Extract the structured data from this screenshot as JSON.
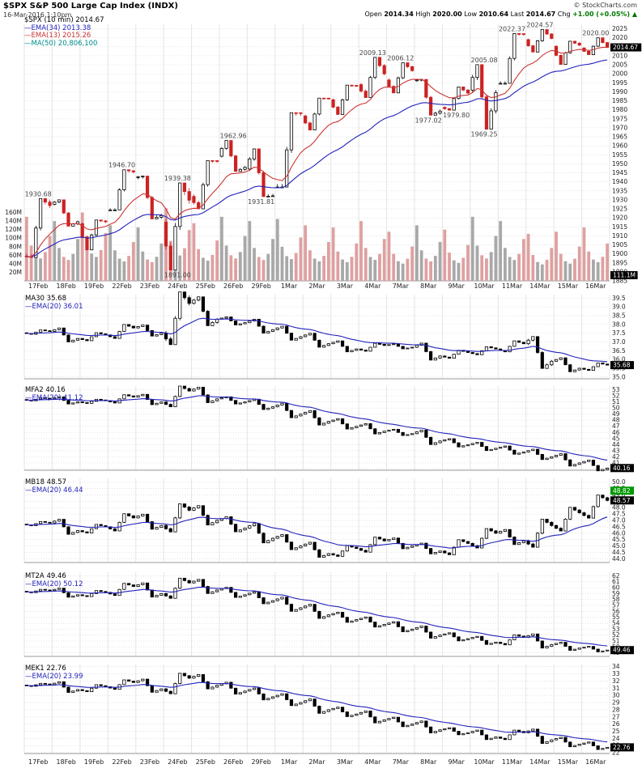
{
  "header": {
    "title": "$SPX S&P 500 Large Cap Index (INDX)",
    "copyright": "© StockCharts.com",
    "datetime": "16-Mar-2016 1:10pm",
    "quote": {
      "open_label": "Open",
      "open": "2014.34",
      "high_label": "High",
      "high": "2020.00",
      "low_label": "Low",
      "low": "2010.64",
      "last_label": "Last",
      "last": "2014.67",
      "chg_label": "Chg",
      "chg": "+1.00 (+0.05%) ▲"
    }
  },
  "colors": {
    "up": "#000000",
    "down": "#cc2222",
    "ema_slow": "#2222bb",
    "ema_fast": "#cc3333",
    "ema_sub": "#2222bb",
    "vol_up": "#a8a8a8",
    "vol_down": "#dfa0a0",
    "grid_v": "#e4e4e4",
    "grid_h": "#d9d9d9",
    "last_box_bg": "#000000",
    "last_box_fg": "#ffffff",
    "alt_box_bg": "#009900"
  },
  "chart_data": {
    "type": "candlestick",
    "dates": [
      "17Feb",
      "18Feb",
      "19Feb",
      "22Feb",
      "23Feb",
      "24Feb",
      "25Feb",
      "26Feb",
      "29Feb",
      "1Mar",
      "2Mar",
      "3Mar",
      "4Mar",
      "7Mar",
      "8Mar",
      "9Mar",
      "10Mar",
      "11Mar",
      "14Mar",
      "15Mar",
      "16Mar"
    ],
    "main": {
      "title": "$SPX 10-minute candlesticks with volume",
      "legend": [
        {
          "text": "$SPX (10 min) 2014.67",
          "color": "#000000"
        },
        {
          "text": "—EMA(34) 2013.38",
          "color": "#2222bb"
        },
        {
          "text": "—EMA(13) 2015.26",
          "color": "#cc3333"
        },
        {
          "text": "—MA(50) 20,806,100",
          "color": "#008b8b"
        }
      ],
      "ylim": [
        1885,
        2027.5
      ],
      "tick_step": 5,
      "tick_dec": 0,
      "days": [
        {
          "d": "17Feb",
          "o": 1898.8,
          "h": 1930.68,
          "l": 1898.0,
          "c": 1926.82,
          "vp": 150
        },
        {
          "d": "18Feb",
          "o": 1927.5,
          "h": 1930.0,
          "l": 1915.4,
          "c": 1917.83,
          "vp": 140
        },
        {
          "d": "19Feb",
          "o": 1916.7,
          "h": 1918.8,
          "l": 1902.2,
          "c": 1917.78,
          "vp": 160
        },
        {
          "d": "22Feb",
          "o": 1924.4,
          "h": 1946.7,
          "l": 1924.4,
          "c": 1945.5,
          "vp": 130
        },
        {
          "d": "23Feb",
          "o": 1942.4,
          "h": 1943.2,
          "l": 1919.4,
          "c": 1921.27,
          "vp": 125
        },
        {
          "d": "24Feb",
          "o": 1917.6,
          "h": 1939.38,
          "l": 1891.0,
          "c": 1929.8,
          "vp": 170
        },
        {
          "d": "25Feb",
          "o": 1931.9,
          "h": 1951.83,
          "l": 1925.0,
          "c": 1951.7,
          "vp": 135
        },
        {
          "d": "26Feb",
          "o": 1954.2,
          "h": 1962.96,
          "l": 1945.8,
          "c": 1948.05,
          "vp": 150
        },
        {
          "d": "29Feb",
          "o": 1947.1,
          "h": 1958.3,
          "l": 1931.81,
          "c": 1932.23,
          "vp": 140
        },
        {
          "d": "1Mar",
          "o": 1937.1,
          "h": 1978.4,
          "l": 1937.1,
          "c": 1978.35,
          "vp": 145
        },
        {
          "d": "2Mar",
          "o": 1976.6,
          "h": 1986.5,
          "l": 1968.8,
          "c": 1986.45,
          "vp": 130
        },
        {
          "d": "3Mar",
          "o": 1985.6,
          "h": 1993.7,
          "l": 1977.4,
          "c": 1993.4,
          "vp": 125
        },
        {
          "d": "4Mar",
          "o": 1994.0,
          "h": 2009.13,
          "l": 1986.8,
          "c": 1999.99,
          "vp": 140
        },
        {
          "d": "7Mar",
          "o": 1996.6,
          "h": 2006.12,
          "l": 1989.4,
          "c": 2001.76,
          "vp": 115
        },
        {
          "d": "8Mar",
          "o": 1996.3,
          "h": 1996.9,
          "l": 1977.02,
          "c": 1979.26,
          "vp": 130
        },
        {
          "d": "9Mar",
          "o": 1981.4,
          "h": 1992.7,
          "l": 1979.8,
          "c": 1989.26,
          "vp": 120
        },
        {
          "d": "10Mar",
          "o": 1990.9,
          "h": 2005.08,
          "l": 1969.25,
          "c": 1989.57,
          "vp": 150
        },
        {
          "d": "11Mar",
          "o": 1994.7,
          "h": 2022.37,
          "l": 1994.7,
          "c": 2022.19,
          "vp": 140
        },
        {
          "d": "14Mar",
          "o": 2019.0,
          "h": 2024.57,
          "l": 2012.1,
          "c": 2019.64,
          "vp": 110
        },
        {
          "d": "15Mar",
          "o": 2015.3,
          "h": 2018.1,
          "l": 2005.2,
          "c": 2015.93,
          "vp": 115
        },
        {
          "d": "16Mar",
          "o": 2014.34,
          "h": 2020.0,
          "l": 2010.64,
          "c": 2014.67,
          "vp": 125
        }
      ],
      "volume": {
        "scale_max": 180,
        "ticks": [
          20,
          40,
          60,
          80,
          100,
          120,
          140,
          160
        ],
        "unit": "M",
        "last_label": "111.1M",
        "pattern": [
          1.0,
          0.55,
          0.4,
          0.35,
          0.45,
          0.7
        ]
      },
      "annotations": [
        {
          "d": "17Feb",
          "side": "above",
          "text": "1930.68"
        },
        {
          "d": "22Feb",
          "side": "above",
          "text": "1946.70"
        },
        {
          "d": "24Feb",
          "side": "above",
          "text": "1939.38"
        },
        {
          "d": "24Feb",
          "side": "below",
          "text": "1891.00"
        },
        {
          "d": "26Feb",
          "side": "above",
          "text": "1962.96"
        },
        {
          "d": "29Feb",
          "side": "below",
          "text": "1931.81"
        },
        {
          "d": "4Mar",
          "side": "above",
          "text": "2009.13"
        },
        {
          "d": "7Mar",
          "side": "above",
          "text": "2006.12"
        },
        {
          "d": "8Mar",
          "side": "below",
          "text": "1977.02"
        },
        {
          "d": "9Mar",
          "side": "below",
          "text": "1979.80"
        },
        {
          "d": "10Mar",
          "side": "above",
          "text": "2005.08"
        },
        {
          "d": "10Mar",
          "side": "below",
          "text": "1969.25"
        },
        {
          "d": "11Mar",
          "side": "above",
          "text": "2022.37"
        },
        {
          "d": "14Mar",
          "side": "above",
          "text": "2024.57"
        },
        {
          "d": "16Mar",
          "side": "above",
          "text": "2020.00"
        }
      ],
      "last": "2014.67"
    },
    "panels": [
      {
        "id": "MA30",
        "label": "MA30 35.68",
        "ema_label": "—EMA(20) 36.01",
        "ylim": [
          34.9,
          39.7
        ],
        "tick_step": 0.5,
        "tick_dec": 1,
        "values": [
          37.6,
          37.2,
          37.4,
          37.8,
          37.5,
          39.2,
          38.3,
          38.1,
          37.7,
          37.3,
          36.9,
          36.6,
          36.8,
          36.7,
          36.2,
          36.4,
          36.6,
          36.9,
          35.9,
          35.5,
          35.68
        ],
        "last": "35.68"
      },
      {
        "id": "MFA2",
        "label": "MFA2 40.16",
        "ema_label": "—EMA(20) 41.12",
        "ylim": [
          39.8,
          53.6
        ],
        "tick_step": 1,
        "tick_dec": 0,
        "values": [
          51.5,
          51.0,
          51.2,
          51.8,
          51.0,
          52.8,
          51.5,
          51.0,
          50.2,
          49.0,
          47.8,
          47.0,
          46.2,
          45.8,
          44.6,
          44.0,
          43.4,
          42.8,
          42.0,
          41.0,
          40.16
        ],
        "last": "40.16"
      },
      {
        "id": "MB18",
        "label": "MB18 48.57",
        "ema_label": "—EMA(20) 46.44",
        "ylim": [
          43.7,
          50.3
        ],
        "tick_step": 0.5,
        "tick_dec": 1,
        "values": [
          46.8,
          46.2,
          46.5,
          47.2,
          46.6,
          47.8,
          47.0,
          46.4,
          45.6,
          45.0,
          44.4,
          44.8,
          45.4,
          45.0,
          44.6,
          45.2,
          46.0,
          45.4,
          46.6,
          47.6,
          48.57
        ],
        "last": "48.57",
        "alt_last": "48.82",
        "alt_color": "#009900"
      },
      {
        "id": "MT2A",
        "label": "MT2A 49.46",
        "ema_label": "—EMA(20) 50.12",
        "ylim": [
          48.4,
          62.6
        ],
        "tick_step": 1,
        "tick_dec": 0,
        "values": [
          59.5,
          58.8,
          59.2,
          60.2,
          59.0,
          60.8,
          59.6,
          58.8,
          57.8,
          56.6,
          55.4,
          54.6,
          53.8,
          53.0,
          52.0,
          51.4,
          50.8,
          51.6,
          50.4,
          49.8,
          49.46
        ],
        "last": "49.46"
      },
      {
        "id": "MEK1",
        "label": "MEK1 22.76",
        "ema_label": "—EMA(20) 23.99",
        "ylim": [
          21.9,
          34.3
        ],
        "tick_step": 1,
        "tick_dec": 0,
        "values": [
          31.5,
          30.8,
          31.2,
          31.8,
          30.9,
          32.4,
          31.4,
          30.6,
          29.8,
          29.0,
          28.0,
          27.4,
          26.6,
          26.0,
          25.2,
          24.8,
          24.2,
          24.8,
          23.8,
          23.2,
          22.76
        ],
        "last": "22.76"
      }
    ]
  }
}
